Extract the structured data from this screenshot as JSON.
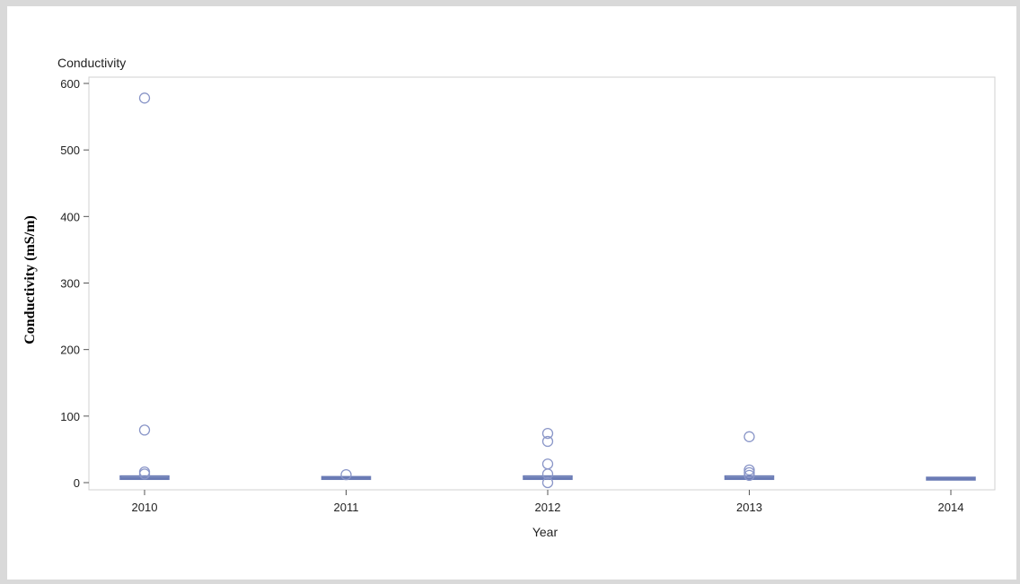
{
  "chart_data": {
    "type": "box",
    "title": "Conductivity",
    "xlabel": "Year",
    "ylabel": "Conductivity (mS/m)",
    "ylim": [
      0,
      600
    ],
    "yticks": [
      0,
      100,
      200,
      300,
      400,
      500,
      600
    ],
    "categories": [
      "2010",
      "2011",
      "2012",
      "2013",
      "2014"
    ],
    "boxes": [
      {
        "category": "2010",
        "q1": 5,
        "median": 7,
        "q3": 10,
        "outliers": [
          578,
          79,
          16,
          13
        ]
      },
      {
        "category": "2011",
        "q1": 5,
        "median": 7,
        "q3": 9,
        "outliers": [
          12
        ]
      },
      {
        "category": "2012",
        "q1": 5,
        "median": 7,
        "q3": 10,
        "outliers": [
          74,
          62,
          28,
          13,
          0
        ]
      },
      {
        "category": "2013",
        "q1": 5,
        "median": 7,
        "q3": 10,
        "outliers": [
          69,
          19,
          15,
          11
        ]
      },
      {
        "category": "2014",
        "q1": 4,
        "median": 6,
        "q3": 8,
        "outliers": []
      }
    ],
    "color": "#6a7bb5",
    "grid": false
  }
}
